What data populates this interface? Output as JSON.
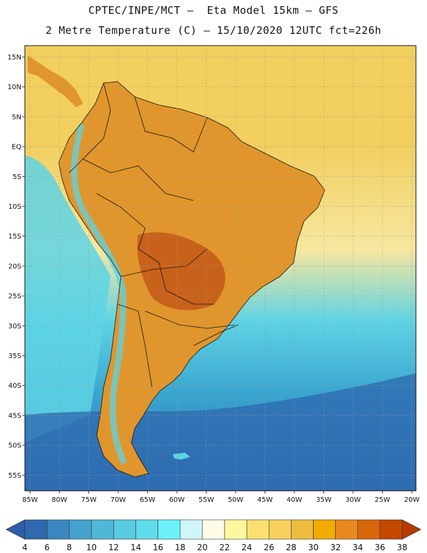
{
  "header": {
    "line1": "CPTEC/INPE/MCT –  Eta Model 15km – GFS",
    "line2": "2 Metre Temperature (C) – 15/10/2020 12UTC fct=226h"
  },
  "map": {
    "lat_labels": [
      "15N",
      "10N",
      "5N",
      "EQ",
      "5S",
      "10S",
      "15S",
      "20S",
      "25S",
      "30S",
      "35S",
      "40S",
      "45S",
      "50S",
      "55S"
    ],
    "lon_labels": [
      "85W",
      "80W",
      "75W",
      "70W",
      "65W",
      "60W",
      "55W",
      "50W",
      "45W",
      "40W",
      "35W",
      "30W",
      "25W",
      "20W"
    ],
    "colors": {
      "ocean_north": "#f2cf5e",
      "ocean_trop": "#f6e7a0",
      "land_hot": "#e0962c",
      "land_very_hot": "#c8621a",
      "ocean_cool": "#5ed3e4",
      "ocean_mid": "#3aa6d0",
      "ocean_deep": "#2e6bb0"
    }
  },
  "colorbar": {
    "labels": [
      "4",
      "6",
      "8",
      "10",
      "12",
      "14",
      "16",
      "18",
      "20",
      "22",
      "24",
      "26",
      "28",
      "30",
      "32",
      "34",
      "36",
      "38"
    ],
    "colors": [
      "#2f69ae",
      "#3a86c0",
      "#44a2cc",
      "#4fb8d8",
      "#58cbe2",
      "#5fdcec",
      "#6bf2f8",
      "#cff6fa",
      "#fffbe8",
      "#fff79e",
      "#fbe070",
      "#f7d05e",
      "#eebd40",
      "#f2ab00",
      "#e9881e",
      "#d8660b",
      "#c44800"
    ],
    "end_left": "#2c5da8",
    "end_right": "#b73a00"
  }
}
